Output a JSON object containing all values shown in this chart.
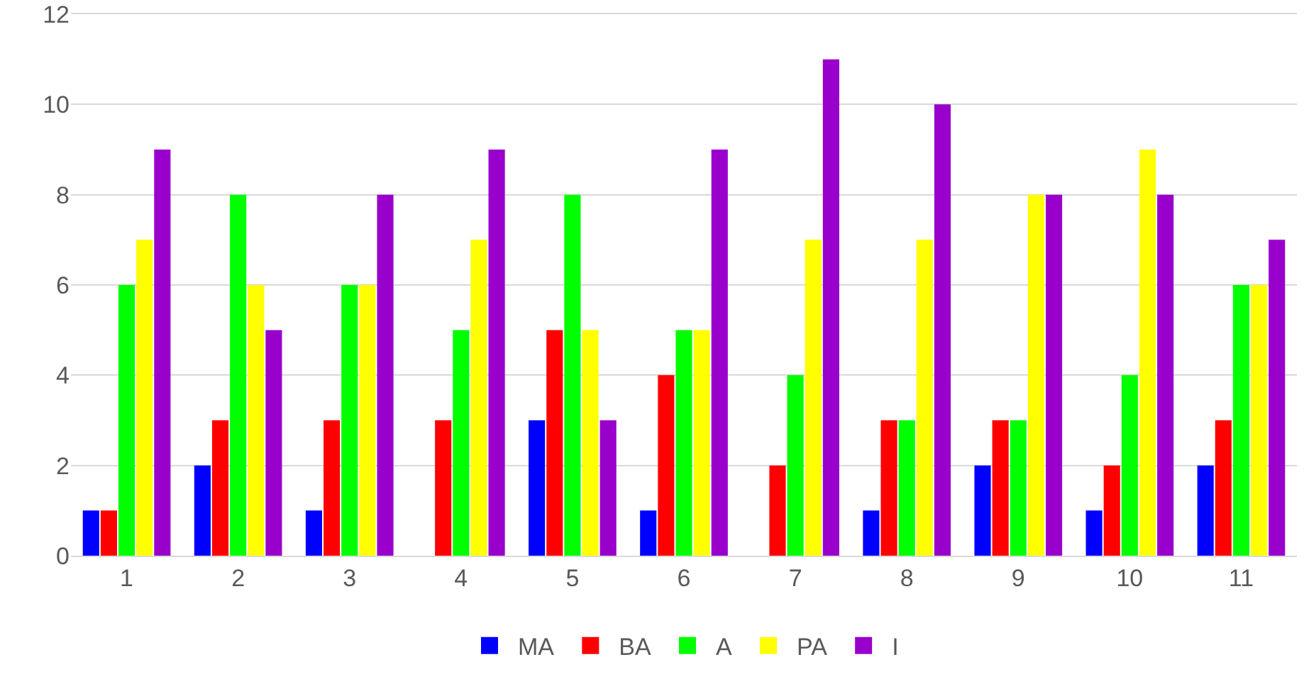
{
  "chart_data": {
    "type": "bar",
    "categories": [
      "1",
      "2",
      "3",
      "4",
      "5",
      "6",
      "7",
      "8",
      "9",
      "10",
      "11"
    ],
    "series": [
      {
        "name": "MA",
        "color": "#0000ff",
        "values": [
          1,
          2,
          1,
          0,
          3,
          1,
          0,
          1,
          2,
          1,
          2
        ]
      },
      {
        "name": "BA",
        "color": "#ff0000",
        "values": [
          1,
          3,
          3,
          3,
          5,
          4,
          2,
          3,
          3,
          2,
          3
        ]
      },
      {
        "name": "A",
        "color": "#00ff00",
        "values": [
          6,
          8,
          6,
          5,
          8,
          5,
          4,
          3,
          3,
          4,
          6
        ]
      },
      {
        "name": "PA",
        "color": "#ffff00",
        "values": [
          7,
          6,
          6,
          7,
          5,
          5,
          7,
          7,
          8,
          9,
          6
        ]
      },
      {
        "name": "I",
        "color": "#9900cc",
        "values": [
          9,
          5,
          8,
          9,
          3,
          9,
          11,
          10,
          8,
          8,
          7
        ]
      }
    ],
    "ylim": [
      0,
      12
    ],
    "yticks": [
      0,
      2,
      4,
      6,
      8,
      10,
      12
    ],
    "grid": "y",
    "legend": "bottom"
  }
}
